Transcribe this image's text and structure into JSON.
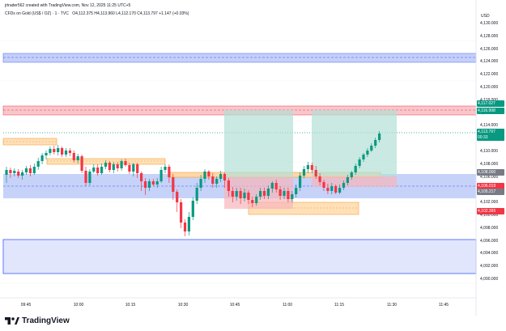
{
  "header": {
    "credit": "jrtrader562 created with TradingView.com, Nov 12, 2025 11:25 UTC+5",
    "symbol": "CFDs on Gold (US$ / OZ) · 1 · TVC",
    "ohlc": "O4,112.375 H4,113.960 L4,112.170 C4,113.797 +1.147 (+0.03%)"
  },
  "price_scale": {
    "currency": "USD",
    "ticks": [
      "4,130.000",
      "4,128.000",
      "4,126.000",
      "4,124.000",
      "4,122.000",
      "4,120.000",
      "4,118.000",
      "4,116.000",
      "4,114.000",
      "4,112.000",
      "4,110.000",
      "4,108.000",
      "4,106.000",
      "4,104.000",
      "4,102.000",
      "4,100.000",
      "4,098.000",
      "4,096.000",
      "4,094.000",
      "4,092.000",
      "4,090.000"
    ],
    "labels": [
      {
        "text": "4,117.027",
        "color": "#089981"
      },
      {
        "text": "4,116.998",
        "color": "#089981"
      },
      {
        "text": "4,113.797",
        "color": "#089981"
      },
      {
        "text": "00:33",
        "color": "#089981"
      },
      {
        "text": "4,108.000",
        "color": "#787b86"
      },
      {
        "text": "4,106.019",
        "color": "#f23645"
      },
      {
        "text": "4,105.217",
        "color": "#787b86"
      },
      {
        "text": "4,102.395",
        "color": "#f23645"
      }
    ]
  },
  "time_scale": {
    "ticks": [
      "09:45",
      "10:00",
      "10:15",
      "10:30",
      "10:45",
      "11:00",
      "11:15",
      "11:30",
      "11:45"
    ]
  },
  "footer": {
    "brand": "TradingView"
  },
  "colors": {
    "up": "#089981",
    "down": "#f23645",
    "zone_blue": "#5c7cfa",
    "zone_red": "#f7a1a8",
    "zone_orange": "#ffd9a8",
    "profit": "#26a69a"
  },
  "chart_data": {
    "type": "candlestick",
    "ylim": [
      4089,
      4131
    ],
    "x": [
      "09:45",
      "10:00",
      "10:15",
      "10:30",
      "10:45",
      "11:00",
      "11:15",
      "11:30",
      "11:45"
    ],
    "last_price": 4113.797
  }
}
